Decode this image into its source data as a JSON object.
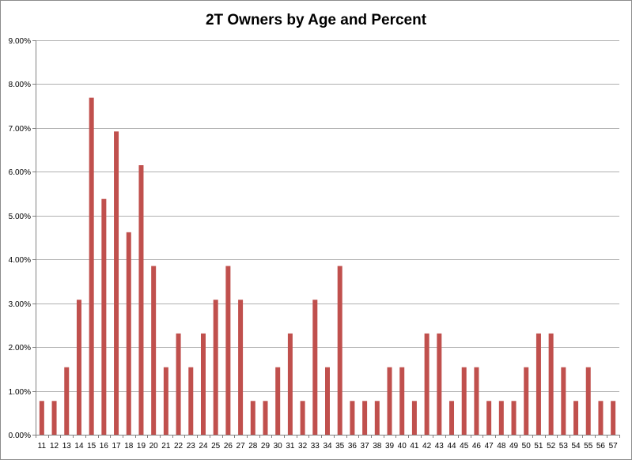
{
  "chart_data": {
    "type": "bar",
    "title": "2T Owners by Age and Percent",
    "xlabel": "",
    "ylabel": "",
    "ylim": [
      0,
      9
    ],
    "y_tick_step": 1,
    "y_tick_labels": [
      "0.00%",
      "1.00%",
      "2.00%",
      "3.00%",
      "4.00%",
      "5.00%",
      "6.00%",
      "7.00%",
      "8.00%",
      "9.00%"
    ],
    "grid": true,
    "legend": "none",
    "bar_color": "#c0504d",
    "gridline_color": "#b0b0b0",
    "categories": [
      "11",
      "12",
      "13",
      "14",
      "15",
      "16",
      "17",
      "18",
      "19",
      "20",
      "21",
      "22",
      "23",
      "24",
      "25",
      "26",
      "27",
      "28",
      "29",
      "30",
      "31",
      "32",
      "33",
      "34",
      "35",
      "36",
      "37",
      "38",
      "39",
      "40",
      "41",
      "42",
      "43",
      "44",
      "45",
      "46",
      "47",
      "48",
      "49",
      "50",
      "51",
      "52",
      "53",
      "54",
      "55",
      "56",
      "57"
    ],
    "values": [
      0.77,
      0.77,
      1.54,
      3.08,
      7.69,
      5.38,
      6.92,
      4.62,
      6.15,
      3.85,
      1.54,
      2.31,
      1.54,
      2.31,
      3.08,
      3.85,
      3.08,
      0.77,
      0.77,
      1.54,
      2.31,
      0.77,
      3.08,
      1.54,
      3.85,
      0.77,
      0.77,
      0.77,
      1.54,
      1.54,
      0.77,
      2.31,
      2.31,
      0.77,
      1.54,
      1.54,
      0.77,
      0.77,
      0.77,
      1.54,
      2.31,
      2.31,
      1.54,
      0.77,
      1.54,
      0.77,
      0.77
    ]
  }
}
